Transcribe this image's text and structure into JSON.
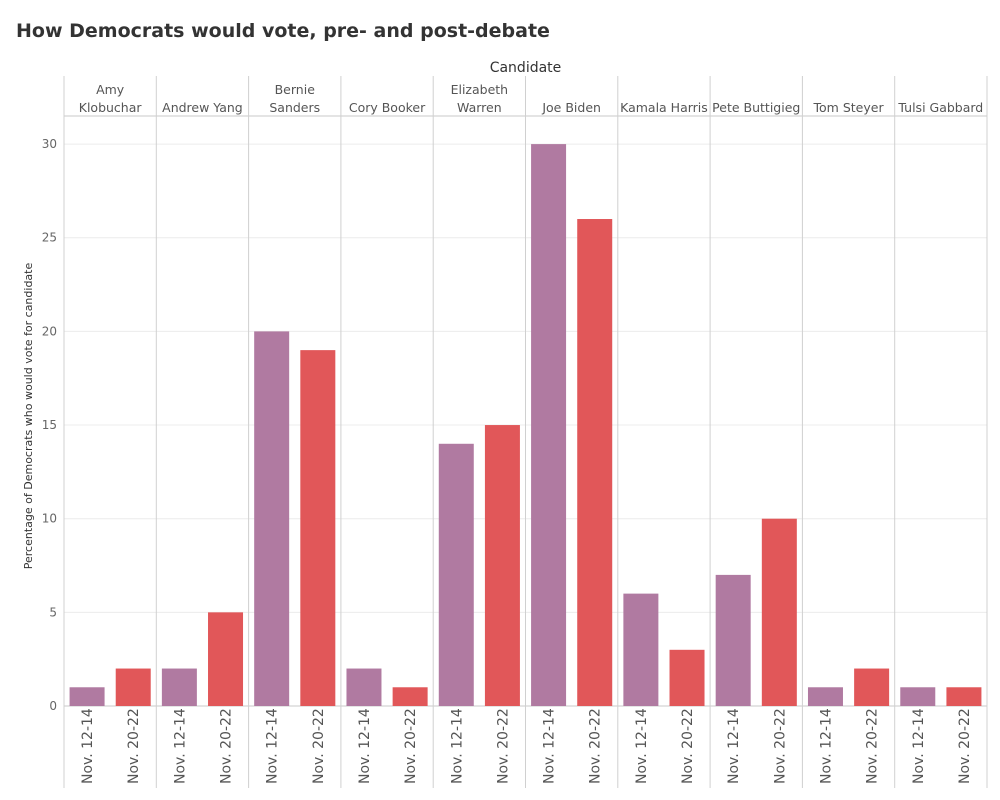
{
  "title": "How Democrats would vote, pre- and post-debate",
  "chart_data": {
    "type": "bar",
    "title": "How Democrats would vote, pre- and post-debate",
    "column_header": "Candidate",
    "ylabel": "Percentage of Democrats who would vote for candidate",
    "ylim": [
      0,
      31.5
    ],
    "yticks": [
      0,
      5,
      10,
      15,
      20,
      25,
      30
    ],
    "periods": [
      "Nov. 12-14",
      "Nov. 20-22"
    ],
    "colors": {
      "Nov. 12-14": "#b07aa1",
      "Nov. 20-22": "#e15759"
    },
    "candidates": [
      {
        "name": "Amy Klobuchar",
        "label_lines": [
          "Amy",
          "Klobuchar"
        ],
        "values": [
          1,
          2
        ]
      },
      {
        "name": "Andrew Yang",
        "label_lines": [
          "Andrew Yang"
        ],
        "values": [
          2,
          5
        ]
      },
      {
        "name": "Bernie Sanders",
        "label_lines": [
          "Bernie",
          "Sanders"
        ],
        "values": [
          20,
          19
        ]
      },
      {
        "name": "Cory Booker",
        "label_lines": [
          "Cory Booker"
        ],
        "values": [
          2,
          1
        ]
      },
      {
        "name": "Elizabeth Warren",
        "label_lines": [
          "Elizabeth",
          "Warren"
        ],
        "values": [
          14,
          15
        ]
      },
      {
        "name": "Joe Biden",
        "label_lines": [
          "Joe Biden"
        ],
        "values": [
          30,
          26
        ]
      },
      {
        "name": "Kamala Harris",
        "label_lines": [
          "Kamala Harris"
        ],
        "values": [
          6,
          3
        ]
      },
      {
        "name": "Pete Buttigieg",
        "label_lines": [
          "Pete Buttigieg"
        ],
        "values": [
          7,
          10
        ]
      },
      {
        "name": "Tom Steyer",
        "label_lines": [
          "Tom Steyer"
        ],
        "values": [
          1,
          2
        ]
      },
      {
        "name": "Tulsi Gabbard",
        "label_lines": [
          "Tulsi Gabbard"
        ],
        "values": [
          1,
          1
        ]
      }
    ]
  }
}
